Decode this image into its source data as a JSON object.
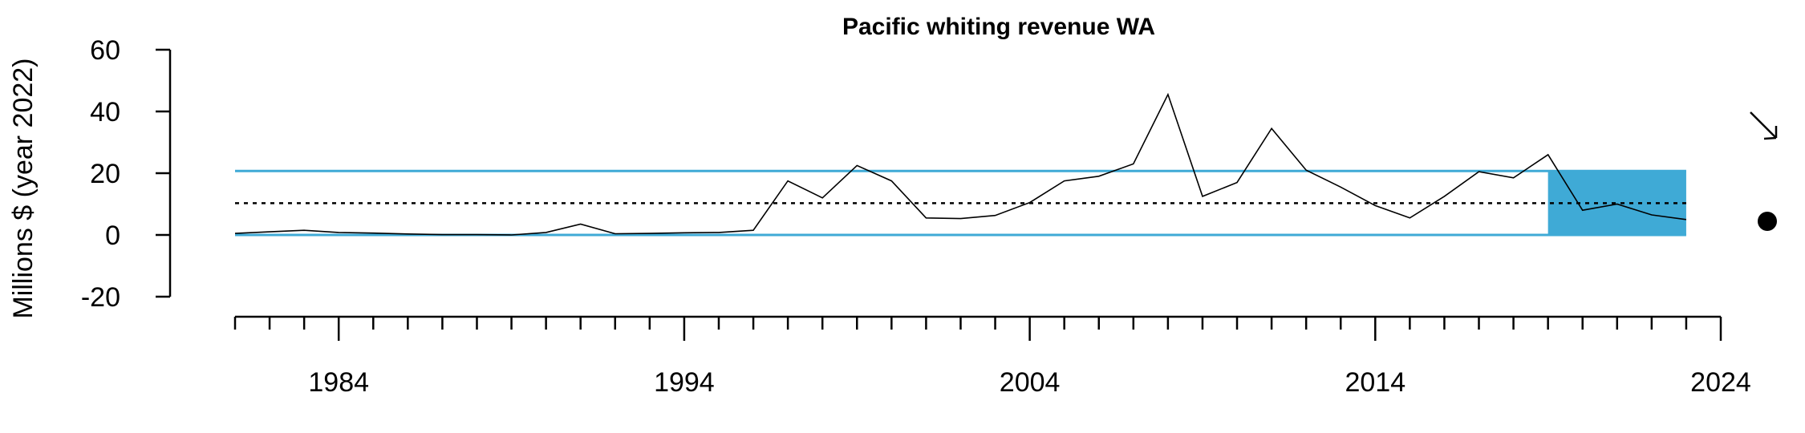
{
  "chart_data": {
    "type": "line",
    "title": "Pacific whiting revenue WA",
    "xlabel": "",
    "ylabel": "Millions $ (year 2022)",
    "ylim": [
      -20,
      60
    ],
    "y_ticks": [
      -20,
      0,
      20,
      40,
      60
    ],
    "x_tick_labels": [
      1984,
      1994,
      2004,
      2014,
      2024
    ],
    "x_minor_ticks_from": 1981,
    "x_minor_ticks_to": 2024,
    "x": [
      1981,
      1982,
      1983,
      1984,
      1985,
      1986,
      1987,
      1988,
      1989,
      1990,
      1991,
      1992,
      1993,
      1994,
      1995,
      1996,
      1997,
      1998,
      1999,
      2000,
      2001,
      2002,
      2003,
      2004,
      2005,
      2006,
      2007,
      2008,
      2009,
      2010,
      2011,
      2012,
      2013,
      2014,
      2015,
      2016,
      2017,
      2018,
      2019,
      2020,
      2021,
      2022,
      2023
    ],
    "values": [
      0.5,
      1.0,
      1.5,
      0.8,
      0.6,
      0.3,
      0.1,
      0.1,
      0.0,
      0.8,
      3.5,
      0.4,
      0.5,
      0.7,
      0.8,
      1.5,
      17.5,
      12.0,
      22.5,
      17.5,
      5.5,
      5.3,
      6.3,
      10.5,
      17.5,
      19.0,
      23.0,
      45.5,
      12.5,
      17.0,
      34.5,
      21.0,
      15.5,
      9.5,
      5.5,
      12.5,
      20.5,
      18.5,
      26.0,
      8.0,
      10.0,
      6.5,
      5.0
    ],
    "mean": 10.3,
    "band_upper": 20.7,
    "band_lower": 0.0,
    "highlight_x_range": [
      2019,
      2023
    ],
    "trend_symbol": "down-right-arrow",
    "status_symbol": "filled-circle",
    "line_color": "#000000",
    "band_color": "#3FAAD6",
    "grid": false,
    "legend": "none"
  }
}
